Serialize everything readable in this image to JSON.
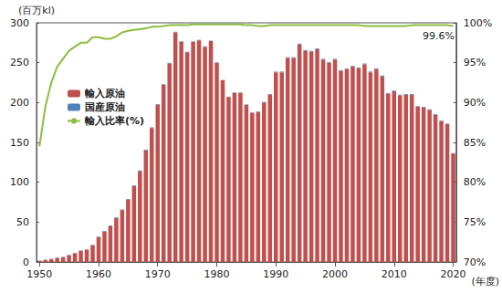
{
  "chart_data": {
    "type": "bar",
    "xlabel": "(年度)",
    "ylabel": "(百万kl)",
    "categories": [
      "1950",
      null,
      null,
      null,
      null,
      null,
      null,
      null,
      null,
      null,
      "1960",
      null,
      null,
      null,
      null,
      null,
      null,
      null,
      null,
      null,
      "1970",
      null,
      null,
      null,
      null,
      null,
      null,
      null,
      null,
      null,
      "1980",
      null,
      null,
      null,
      null,
      null,
      null,
      null,
      null,
      null,
      "1990",
      null,
      null,
      null,
      null,
      null,
      null,
      null,
      null,
      null,
      "2000",
      null,
      null,
      null,
      null,
      null,
      null,
      null,
      null,
      null,
      "2010",
      null,
      null,
      null,
      null,
      null,
      null,
      null,
      null,
      null,
      "2020"
    ],
    "stacked": true,
    "grid": false,
    "legend": "upper left",
    "ylim": [
      0,
      300
    ],
    "yticks": [
      0,
      50,
      100,
      150,
      200,
      250,
      300
    ],
    "y2lim": [
      70,
      100
    ],
    "y2ticks": [
      {
        "value": 70,
        "label": "70%"
      },
      {
        "value": 75,
        "label": "75%"
      },
      {
        "value": 80,
        "label": "80%"
      },
      {
        "value": 85,
        "label": "85%"
      },
      {
        "value": 90,
        "label": "90%"
      },
      {
        "value": 95,
        "label": "95%"
      },
      {
        "value": 100,
        "label": "100%"
      }
    ],
    "series": [
      {
        "name": "輸入原油",
        "type": "bar",
        "color": "#c0504d",
        "values": [
          1.5,
          2.5,
          3.5,
          5,
          6,
          8.5,
          11,
          14,
          15.5,
          21,
          31,
          38,
          45,
          55,
          65,
          78,
          95,
          114,
          140,
          168,
          197,
          222,
          249,
          288,
          276,
          263,
          276,
          278,
          270,
          277,
          250,
          228,
          207,
          212,
          212,
          197,
          187,
          188,
          200,
          210,
          238,
          238,
          256,
          256,
          273,
          265,
          264,
          267,
          254,
          250,
          254,
          240,
          242,
          245,
          243,
          248,
          238,
          242,
          233,
          211,
          214,
          209,
          210,
          210,
          195,
          194,
          191,
          185,
          177,
          173,
          136
        ]
      },
      {
        "name": "国産原油",
        "type": "bar",
        "color": "#4f81bd",
        "values": [
          0.28,
          0.3,
          0.28,
          0.3,
          0.33,
          0.35,
          0.35,
          0.37,
          0.38,
          0.43,
          0.6,
          0.8,
          0.9,
          0.85,
          0.85,
          0.9,
          0.9,
          0.9,
          0.9,
          0.85,
          0.9,
          0.9,
          0.8,
          0.8,
          0.7,
          0.7,
          0.65,
          0.6,
          0.55,
          0.55,
          0.5,
          0.45,
          0.45,
          0.45,
          0.5,
          0.6,
          0.65,
          0.7,
          0.7,
          0.7,
          0.7,
          0.8,
          0.9,
          0.85,
          0.85,
          0.85,
          0.85,
          0.85,
          0.85,
          0.8,
          0.8,
          0.75,
          0.8,
          0.85,
          0.85,
          0.9,
          0.9,
          0.95,
          0.95,
          0.9,
          0.85,
          0.85,
          0.75,
          0.65,
          0.6,
          0.55,
          0.55,
          0.5,
          0.5,
          0.55,
          0.55
        ]
      },
      {
        "name": "輸入比率(%)",
        "type": "line",
        "axis": "y2",
        "color": "#8cbd3f",
        "values": [
          84.5,
          89.5,
          92.5,
          94.5,
          95.5,
          96.5,
          97,
          97.5,
          97.5,
          98.2,
          98.2,
          98,
          98,
          98.3,
          98.8,
          99,
          99.1,
          99.2,
          99.3,
          99.5,
          99.5,
          99.6,
          99.7,
          99.7,
          99.7,
          99.7,
          99.8,
          99.8,
          99.8,
          99.8,
          99.8,
          99.8,
          99.8,
          99.8,
          99.8,
          99.7,
          99.7,
          99.6,
          99.6,
          99.7,
          99.7,
          99.7,
          99.7,
          99.7,
          99.7,
          99.7,
          99.7,
          99.7,
          99.7,
          99.7,
          99.7,
          99.7,
          99.7,
          99.7,
          99.7,
          99.6,
          99.6,
          99.6,
          99.6,
          99.6,
          99.6,
          99.6,
          99.6,
          99.7,
          99.7,
          99.7,
          99.7,
          99.7,
          99.7,
          99.7,
          99.6
        ]
      }
    ],
    "annotations": [
      {
        "text": "99.6%",
        "x": "2020",
        "y": 99.6
      }
    ]
  }
}
